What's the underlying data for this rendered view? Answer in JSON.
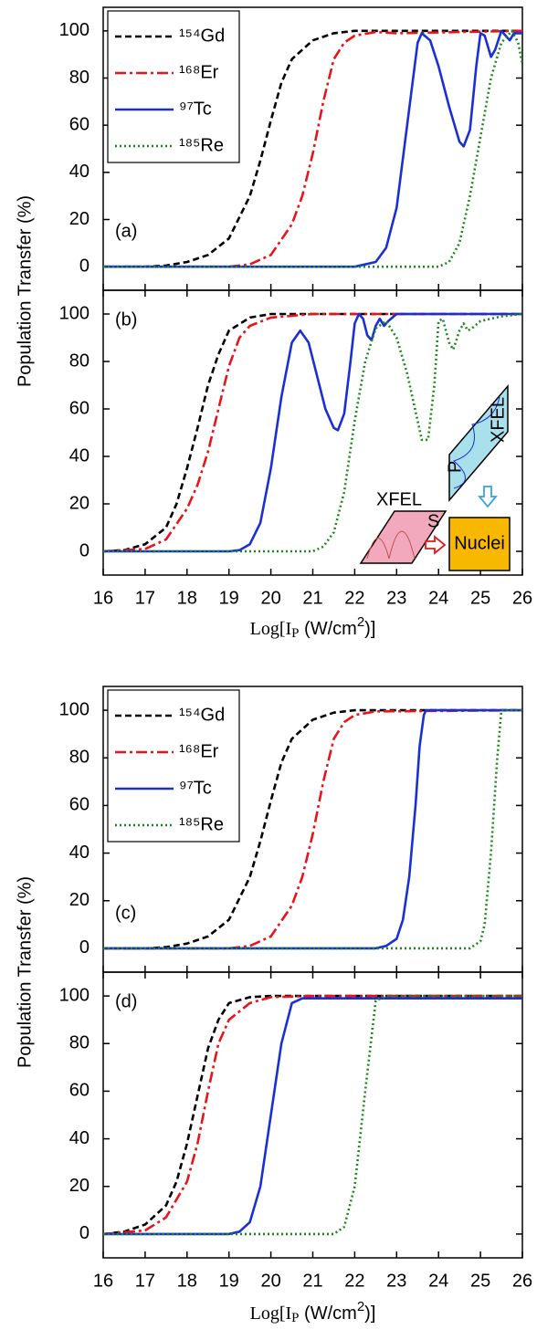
{
  "chart_data": [
    {
      "type": "line",
      "label": "(a)",
      "y_label": "Population Transfer (%)",
      "legend": "upper left",
      "xlim": [
        16,
        26
      ],
      "ylim": [
        -10,
        110
      ],
      "yticks": [
        0,
        20,
        40,
        60,
        80,
        100
      ],
      "series": [
        {
          "name": "¹⁵⁴Gd",
          "color": "#000000",
          "linestyle": "dashed",
          "x": [
            16,
            17,
            17.5,
            18,
            18.5,
            19,
            19.5,
            19.75,
            20,
            20.25,
            20.5,
            21,
            21.5,
            22,
            26
          ],
          "values": [
            0,
            0,
            0.5,
            2,
            5,
            12,
            30,
            45,
            62,
            78,
            88,
            96,
            99,
            100,
            100
          ]
        },
        {
          "name": "¹⁶⁸Er",
          "color": "#e8141b",
          "linestyle": "dashdot",
          "x": [
            16,
            19,
            19.5,
            20,
            20.5,
            20.75,
            21,
            21.25,
            21.5,
            21.75,
            22,
            22.5,
            23,
            26
          ],
          "values": [
            0,
            0,
            1,
            5,
            18,
            30,
            48,
            70,
            88,
            95,
            98,
            99.5,
            99,
            100
          ]
        },
        {
          "name": "⁹⁷Tc",
          "color": "#1a2fd6",
          "linestyle": "solid",
          "x": [
            16,
            21,
            22,
            22.5,
            22.75,
            23,
            23.25,
            23.5,
            23.6,
            23.8,
            24,
            24.25,
            24.5,
            24.6,
            24.75,
            24.9,
            25,
            25.1,
            25.25,
            25.35,
            25.5,
            25.6,
            25.7,
            25.8,
            26
          ],
          "values": [
            0,
            0,
            0,
            2,
            8,
            25,
            60,
            95,
            99,
            96,
            85,
            68,
            53,
            51,
            58,
            85,
            99,
            98,
            89,
            92,
            100,
            98,
            96,
            99,
            99
          ]
        },
        {
          "name": "¹⁸⁵Re",
          "color": "#1a8a1a",
          "linestyle": "dotted",
          "x": [
            16,
            24,
            24.25,
            24.5,
            24.75,
            25,
            25.25,
            25.5,
            25.75,
            25.9,
            26
          ],
          "values": [
            0,
            0,
            2,
            10,
            30,
            55,
            80,
            95,
            100,
            95,
            86
          ]
        }
      ]
    },
    {
      "type": "line",
      "label": "(b)",
      "xlim": [
        16,
        26
      ],
      "ylim": [
        -10,
        110
      ],
      "yticks": [
        0,
        20,
        40,
        60,
        80,
        100
      ],
      "xticks": [
        16,
        17,
        18,
        19,
        20,
        21,
        22,
        23,
        24,
        25,
        26
      ],
      "x_label": [
        "Log[I",
        "P",
        " (W/cm",
        "2",
        ")]"
      ],
      "inset": {
        "xfel_s": "XFEL",
        "s": "S",
        "xfel_p": "XFEL",
        "p": "P",
        "target": "Nuclei"
      },
      "series": [
        {
          "color": "#000000",
          "linestyle": "dashed",
          "x": [
            16,
            16.5,
            17,
            17.5,
            17.75,
            18,
            18.25,
            18.5,
            18.75,
            19,
            19.5,
            20,
            26
          ],
          "values": [
            0,
            0.5,
            3,
            10,
            20,
            35,
            52,
            70,
            83,
            93,
            98.5,
            100,
            100
          ]
        },
        {
          "color": "#e8141b",
          "linestyle": "dashdot",
          "x": [
            16,
            17,
            17.5,
            18,
            18.25,
            18.5,
            18.75,
            19,
            19.25,
            19.5,
            20,
            21,
            26
          ],
          "values": [
            0,
            1,
            5,
            18,
            28,
            42,
            60,
            78,
            90,
            95,
            98.5,
            100,
            100
          ]
        },
        {
          "color": "#1a2fd6",
          "linestyle": "solid",
          "x": [
            16,
            19,
            19.25,
            19.5,
            19.75,
            20,
            20.25,
            20.5,
            20.7,
            20.9,
            21.1,
            21.3,
            21.5,
            21.6,
            21.75,
            21.9,
            22,
            22.1,
            22.2,
            22.3,
            22.4,
            22.5,
            22.6,
            22.7,
            22.8,
            23,
            26
          ],
          "values": [
            0,
            0,
            0.5,
            3,
            12,
            35,
            65,
            88,
            93,
            88,
            74,
            60,
            52,
            51,
            58,
            80,
            96,
            100,
            98,
            91,
            89,
            95,
            98,
            95,
            97,
            100,
            100
          ]
        },
        {
          "color": "#1a8a1a",
          "linestyle": "dotted",
          "x": [
            16,
            21,
            21.25,
            21.5,
            21.75,
            22,
            22.25,
            22.5,
            22.75,
            23,
            23.25,
            23.5,
            23.6,
            23.75,
            23.9,
            24,
            24.1,
            24.25,
            24.35,
            24.5,
            24.6,
            24.7,
            24.8,
            25,
            25.5,
            26
          ],
          "values": [
            0,
            0,
            2,
            8,
            25,
            55,
            80,
            94,
            97,
            90,
            75,
            55,
            47,
            47,
            70,
            97,
            98,
            88,
            85,
            93,
            96,
            93,
            94,
            97,
            99,
            100
          ]
        }
      ]
    },
    {
      "type": "line",
      "label": "(c)",
      "y_label": "Population Transfer (%)",
      "legend": "upper left",
      "xlim": [
        16,
        26
      ],
      "ylim": [
        -10,
        110
      ],
      "yticks": [
        0,
        20,
        40,
        60,
        80,
        100
      ],
      "series": [
        {
          "name": "¹⁵⁴Gd",
          "color": "#000000",
          "linestyle": "dashed",
          "x": [
            16,
            17,
            17.5,
            18,
            18.5,
            19,
            19.5,
            19.75,
            20,
            20.25,
            20.5,
            21,
            21.5,
            22,
            26
          ],
          "values": [
            0,
            0,
            0.5,
            2,
            5,
            12,
            30,
            45,
            62,
            78,
            88,
            96,
            99,
            100,
            100
          ]
        },
        {
          "name": "¹⁶⁸Er",
          "color": "#e8141b",
          "linestyle": "dashdot",
          "x": [
            16,
            19,
            19.5,
            20,
            20.5,
            20.75,
            21,
            21.25,
            21.5,
            21.75,
            22,
            22.5,
            26
          ],
          "values": [
            0,
            0,
            1,
            5,
            18,
            30,
            48,
            70,
            88,
            95,
            98,
            99.5,
            100
          ]
        },
        {
          "name": "⁹⁷Tc",
          "color": "#1a2fd6",
          "linestyle": "solid",
          "x": [
            16,
            22.5,
            22.75,
            23,
            23.15,
            23.3,
            23.45,
            23.55,
            23.65,
            23.7,
            26
          ],
          "values": [
            0,
            0,
            1,
            4,
            12,
            30,
            60,
            85,
            98,
            100,
            100
          ]
        },
        {
          "name": "¹⁸⁵Re",
          "color": "#1a8a1a",
          "linestyle": "dotted",
          "x": [
            16,
            24.75,
            25,
            25.1,
            25.25,
            25.4,
            25.5,
            26
          ],
          "values": [
            0,
            0,
            3,
            10,
            40,
            80,
            100,
            100
          ]
        }
      ]
    },
    {
      "type": "line",
      "label": "(d)",
      "xlim": [
        16,
        26
      ],
      "ylim": [
        -10,
        110
      ],
      "yticks": [
        0,
        20,
        40,
        60,
        80,
        100
      ],
      "xticks": [
        16,
        17,
        18,
        19,
        20,
        21,
        22,
        23,
        24,
        25,
        26
      ],
      "x_label": [
        "Log[I",
        "P",
        " (W/cm",
        "2",
        ")]"
      ],
      "series": [
        {
          "color": "#000000",
          "linestyle": "dashed",
          "x": [
            16,
            16.5,
            17,
            17.5,
            17.75,
            18,
            18.25,
            18.5,
            18.75,
            19,
            19.5,
            20,
            26
          ],
          "values": [
            0,
            1,
            4,
            12,
            22,
            38,
            58,
            78,
            90,
            97,
            99.5,
            100,
            100
          ]
        },
        {
          "color": "#e8141b",
          "linestyle": "dashdot",
          "x": [
            16,
            17,
            17.5,
            18,
            18.25,
            18.5,
            18.75,
            19,
            19.5,
            20,
            21,
            26
          ],
          "values": [
            0,
            1.5,
            7,
            22,
            38,
            60,
            80,
            90,
            97,
            99.5,
            100,
            100
          ]
        },
        {
          "color": "#1a2fd6",
          "linestyle": "solid",
          "x": [
            16,
            19,
            19.25,
            19.5,
            19.75,
            20,
            20.25,
            20.5,
            20.75,
            21,
            26
          ],
          "values": [
            0,
            0,
            1,
            5,
            20,
            50,
            80,
            97,
            99,
            99,
            99
          ]
        },
        {
          "color": "#1a8a1a",
          "linestyle": "dotted",
          "x": [
            16,
            21.5,
            21.75,
            22,
            22.25,
            22.5,
            22.75,
            26
          ],
          "values": [
            0,
            0,
            3,
            20,
            60,
            98,
            100,
            100
          ]
        }
      ]
    }
  ]
}
